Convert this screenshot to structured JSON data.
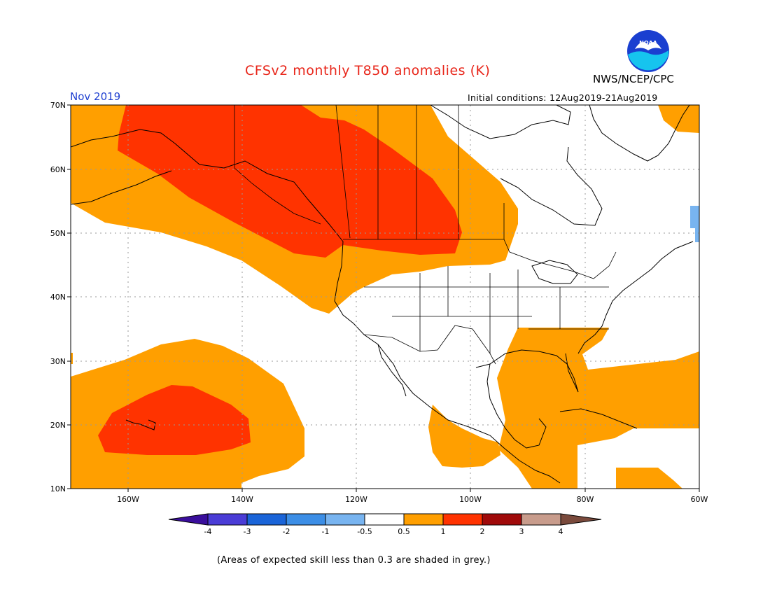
{
  "header": {
    "title": "CFSv2 monthly T850 anomalies (K)",
    "agency": "NWS/NCEP/CPC",
    "month": "Nov 2019",
    "initial_conditions": "Initial conditions: 12Aug2019-21Aug2019",
    "logo_text": "NOAA"
  },
  "map": {
    "lon_range": [
      -170,
      -60
    ],
    "lat_range": [
      10,
      70
    ],
    "lat_labels": [
      "70N",
      "60N",
      "50N",
      "40N",
      "30N",
      "20N",
      "10N"
    ],
    "lon_labels": [
      "160W",
      "140W",
      "120W",
      "100W",
      "80W",
      "60W"
    ],
    "colors": {
      "pos_0_5_1": "#ff9f00",
      "pos_1_2": "#ff3300",
      "neg_1_0_5": "#78b4f0"
    }
  },
  "colorbar": {
    "tick_labels": [
      "-4",
      "-3",
      "-2",
      "-1",
      "-0.5",
      "0.5",
      "1",
      "2",
      "3",
      "4"
    ],
    "colors": [
      "#3a0e9c",
      "#4a3cd6",
      "#1a64d8",
      "#3c8ee6",
      "#78b4f0",
      "#ffffff",
      "#ff9f00",
      "#ff3300",
      "#a00a0a",
      "#c89c8c",
      "#7a4a3c"
    ]
  },
  "footnote": "(Areas of expected skill less than 0.3 are shaded in grey.)"
}
